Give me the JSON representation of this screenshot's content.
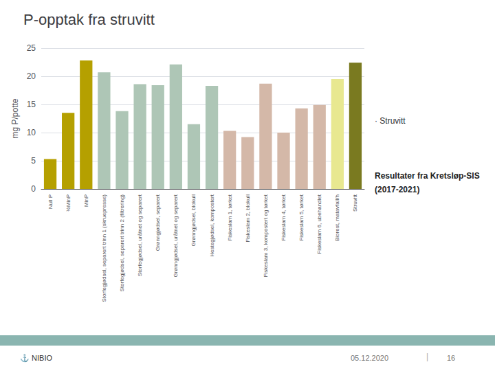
{
  "chart_data": {
    "type": "bar",
    "title": "P-opptak fra struvitt",
    "ylabel": "mg P/potte",
    "categories": [
      "Null P",
      "½MinP",
      "MinP",
      "Storfegjødsel, separert trinn 1 (skruepresse)",
      "Storfegjødsel, separert trinn 2 (filtrering)",
      "Storfegjødsel, uråtnet og separert",
      "Grønngjødsel, separert",
      "Grønngjødsel, uråtnet og separert",
      "Grønngjødsel, blokull",
      "Hestegjødsel, kompostert",
      "Fiskeslam 1, tørket",
      "Fiskeslam 2, blokull",
      "Fiskeslam 3, kompostert og tørket",
      "Fiskeslam 4, tørket",
      "Fiskeslam 5, tørket",
      "Fiskeslam 6, ubehandlet",
      "Biorest, matavfall/h",
      "Struvitt"
    ],
    "values": [
      5.3,
      13.5,
      22.8,
      20.7,
      13.8,
      18.6,
      18.4,
      22.1,
      11.5,
      18.3,
      10.3,
      9.2,
      18.7,
      10.0,
      14.3,
      14.9,
      19.5,
      22.4
    ],
    "colors": [
      "#b5a000",
      "#b5a000",
      "#b5a000",
      "#aec6b6",
      "#aec6b6",
      "#aec6b6",
      "#aec6b6",
      "#aec6b6",
      "#aec6b6",
      "#aec6b6",
      "#d4b8a8",
      "#d4b8a8",
      "#d4b8a8",
      "#d4b8a8",
      "#d4b8a8",
      "#d4b8a8",
      "#e8e890",
      "#7a7a20"
    ],
    "ylim": [
      0,
      25
    ],
    "yticks": [
      0,
      5,
      10,
      15,
      20,
      25
    ],
    "grid": true,
    "annotations": [
      "· Struvitt",
      "Resultater fra Kretsløp-SIS",
      "(2017-2021)",
      "⚓ NIBIO",
      "05.12.2020",
      "|",
      "16"
    ]
  }
}
